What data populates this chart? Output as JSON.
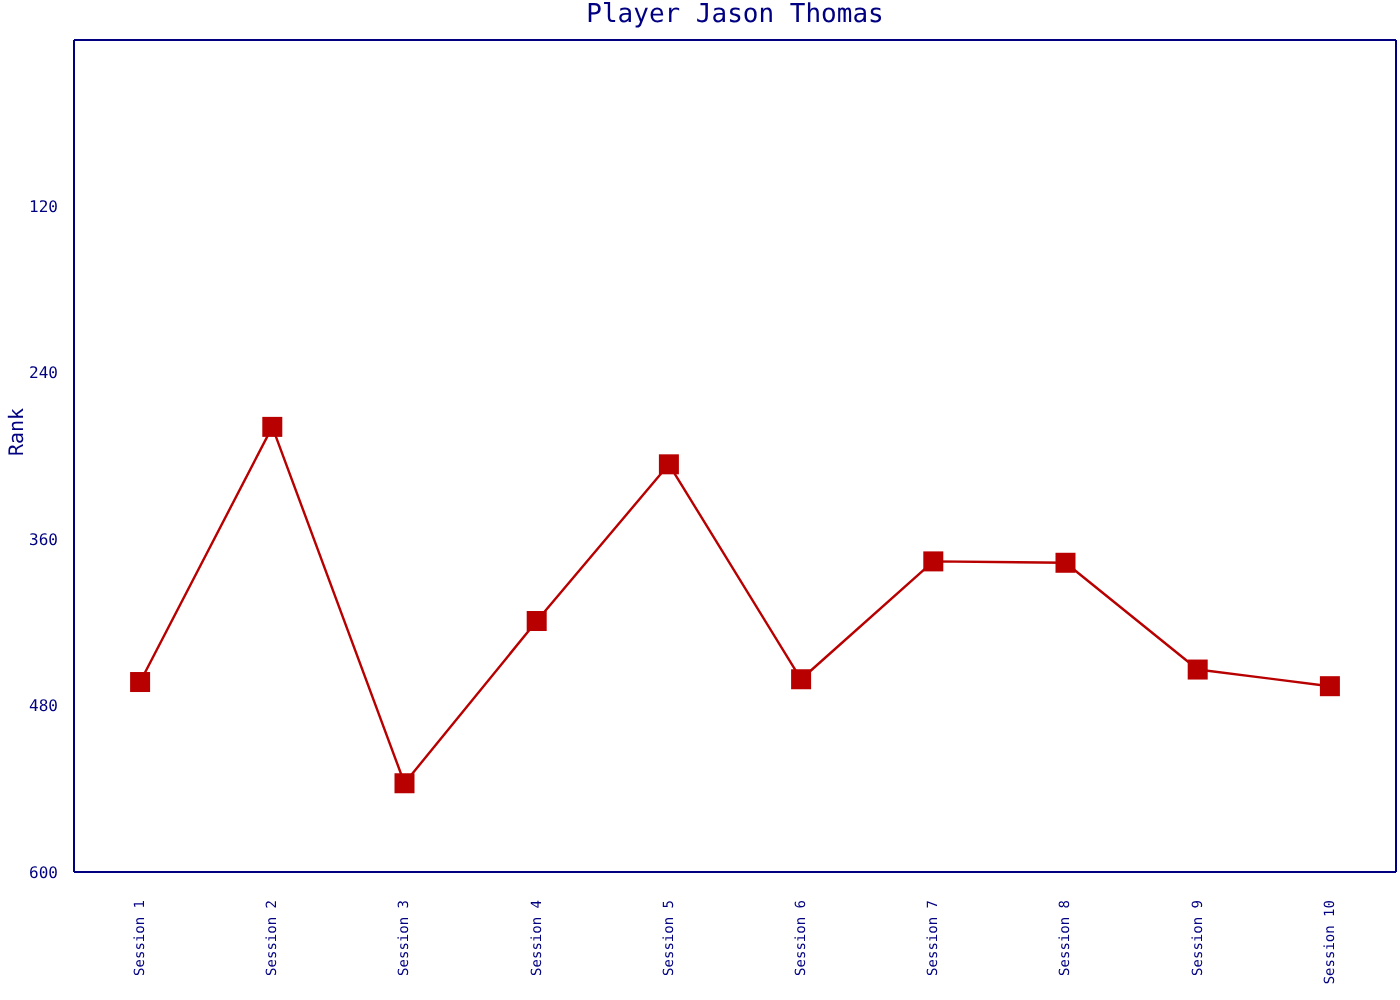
{
  "chart_data": {
    "type": "line",
    "title": "Player Jason Thomas",
    "ylabel": "Rank",
    "categories": [
      "Session 1",
      "Session 2",
      "Session 3",
      "Session 4",
      "Session 5",
      "Session 6",
      "Session 7",
      "Session 8",
      "Session 9",
      "Session 10"
    ],
    "series": [
      {
        "color": "#b80000",
        "values": [
          463,
          279,
          536,
          419,
          306,
          461,
          376,
          377,
          454,
          466
        ]
      }
    ],
    "ylim": [
      600,
      0
    ],
    "yticks": [
      120,
      240,
      360,
      480,
      600
    ],
    "marker": "square",
    "grid": false
  }
}
